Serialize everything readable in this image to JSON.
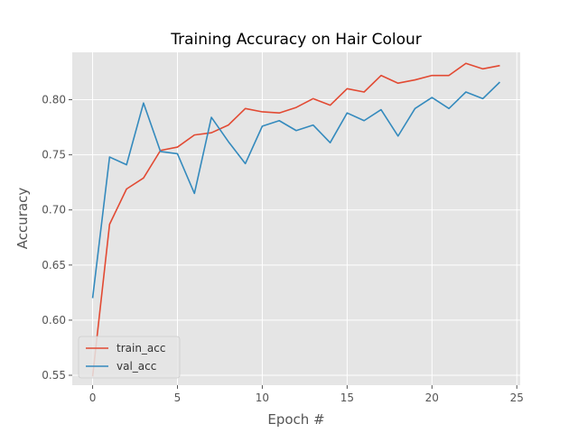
{
  "chart_data": {
    "type": "line",
    "title": "Training Accuracy on Hair Colour",
    "xlabel": "Epoch #",
    "ylabel": "Accuracy",
    "xlim": [
      -1.2,
      25.2
    ],
    "ylim": [
      0.541,
      0.843
    ],
    "xticks": [
      0,
      5,
      10,
      15,
      20,
      25
    ],
    "xtick_labels": [
      "0",
      "5",
      "10",
      "15",
      "20",
      "25"
    ],
    "yticks": [
      0.55,
      0.6,
      0.65,
      0.7,
      0.75,
      0.8
    ],
    "ytick_labels": [
      "0.55",
      "0.60",
      "0.65",
      "0.70",
      "0.75",
      "0.80"
    ],
    "grid": true,
    "legend_position": "lower-left",
    "x": [
      0,
      1,
      2,
      3,
      4,
      5,
      6,
      7,
      8,
      9,
      10,
      11,
      12,
      13,
      14,
      15,
      16,
      17,
      18,
      19,
      20,
      21,
      22,
      23,
      24
    ],
    "series": [
      {
        "name": "train_acc",
        "color": "#E24A33",
        "values": [
          0.549,
          0.687,
          0.719,
          0.729,
          0.754,
          0.757,
          0.768,
          0.77,
          0.777,
          0.792,
          0.789,
          0.788,
          0.793,
          0.801,
          0.795,
          0.81,
          0.807,
          0.822,
          0.815,
          0.818,
          0.822,
          0.822,
          0.833,
          0.828,
          0.831
        ]
      },
      {
        "name": "val_acc",
        "color": "#348ABD",
        "values": [
          0.62,
          0.748,
          0.741,
          0.797,
          0.753,
          0.751,
          0.715,
          0.784,
          0.762,
          0.742,
          0.776,
          0.781,
          0.772,
          0.777,
          0.761,
          0.788,
          0.781,
          0.791,
          0.767,
          0.792,
          0.802,
          0.792,
          0.807,
          0.801,
          0.816
        ]
      }
    ]
  }
}
